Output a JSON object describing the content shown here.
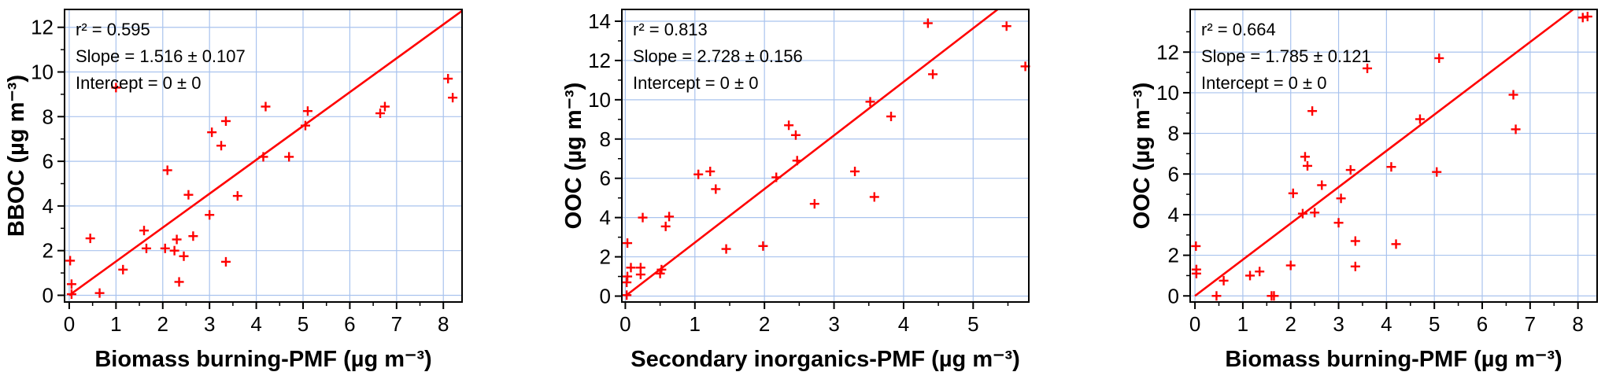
{
  "chart_data": [
    {
      "type": "scatter",
      "xlabel": "Biomass burning-PMF (µg m⁻³)",
      "ylabel": "BBOC (µg m⁻³)",
      "xlim": [
        -0.1,
        8.4
      ],
      "ylim": [
        -0.3,
        12.8
      ],
      "xticks": [
        0,
        1,
        2,
        3,
        4,
        5,
        6,
        7,
        8
      ],
      "yticks": [
        0,
        2,
        4,
        6,
        8,
        10,
        12
      ],
      "grid": true,
      "annotations": [
        "r² = 0.595",
        "Slope = 1.516 ± 0.107",
        "Intercept = 0 ± 0"
      ],
      "fit": {
        "slope": 1.516,
        "intercept": 0
      },
      "marker_color": "#ff0000",
      "points": [
        {
          "x": 0.02,
          "y": 1.55
        },
        {
          "x": 0.05,
          "y": 0.5
        },
        {
          "x": 0.05,
          "y": 0.05
        },
        {
          "x": 0.45,
          "y": 2.55
        },
        {
          "x": 0.65,
          "y": 0.1
        },
        {
          "x": 1.15,
          "y": 1.15
        },
        {
          "x": 1.6,
          "y": 2.9
        },
        {
          "x": 1.65,
          "y": 2.1
        },
        {
          "x": 2.05,
          "y": 2.1
        },
        {
          "x": 2.1,
          "y": 5.6
        },
        {
          "x": 2.25,
          "y": 2.0
        },
        {
          "x": 2.3,
          "y": 2.5
        },
        {
          "x": 2.35,
          "y": 0.6
        },
        {
          "x": 2.45,
          "y": 1.75
        },
        {
          "x": 2.55,
          "y": 4.5
        },
        {
          "x": 2.65,
          "y": 2.65
        },
        {
          "x": 3.0,
          "y": 3.6
        },
        {
          "x": 3.05,
          "y": 7.3
        },
        {
          "x": 3.25,
          "y": 6.7
        },
        {
          "x": 3.35,
          "y": 7.8
        },
        {
          "x": 3.35,
          "y": 1.5
        },
        {
          "x": 3.6,
          "y": 4.45
        },
        {
          "x": 4.15,
          "y": 6.2
        },
        {
          "x": 4.2,
          "y": 8.45
        },
        {
          "x": 4.7,
          "y": 6.2
        },
        {
          "x": 5.05,
          "y": 7.6
        },
        {
          "x": 5.1,
          "y": 8.25
        },
        {
          "x": 6.65,
          "y": 8.15
        },
        {
          "x": 6.75,
          "y": 8.45
        },
        {
          "x": 8.1,
          "y": 9.7
        },
        {
          "x": 8.2,
          "y": 8.85
        },
        {
          "x": 1.0,
          "y": 9.3
        }
      ]
    },
    {
      "type": "scatter",
      "xlabel": "Secondary inorganics-PMF (µg m⁻³)",
      "ylabel": "OOC (µg m⁻³)",
      "xlim": [
        -0.05,
        5.8
      ],
      "ylim": [
        -0.3,
        14.6
      ],
      "xticks": [
        0,
        1,
        2,
        3,
        4,
        5
      ],
      "yticks": [
        0,
        2,
        4,
        6,
        8,
        10,
        12,
        14
      ],
      "grid": true,
      "annotations": [
        "r² = 0.813",
        "Slope = 2.728 ± 0.156",
        "Intercept = 0 ± 0"
      ],
      "fit": {
        "slope": 2.728,
        "intercept": 0
      },
      "marker_color": "#ff0000",
      "points": [
        {
          "x": 0.02,
          "y": 0.05
        },
        {
          "x": 0.02,
          "y": 0.7
        },
        {
          "x": 0.03,
          "y": 1.0
        },
        {
          "x": 0.03,
          "y": 2.7
        },
        {
          "x": 0.08,
          "y": 1.45
        },
        {
          "x": 0.22,
          "y": 1.1
        },
        {
          "x": 0.22,
          "y": 1.45
        },
        {
          "x": 0.25,
          "y": 4.0
        },
        {
          "x": 0.5,
          "y": 1.15
        },
        {
          "x": 0.52,
          "y": 1.35
        },
        {
          "x": 0.58,
          "y": 3.55
        },
        {
          "x": 0.63,
          "y": 4.05
        },
        {
          "x": 1.05,
          "y": 6.2
        },
        {
          "x": 1.22,
          "y": 6.35
        },
        {
          "x": 1.3,
          "y": 5.45
        },
        {
          "x": 1.45,
          "y": 2.4
        },
        {
          "x": 1.98,
          "y": 2.55
        },
        {
          "x": 2.17,
          "y": 6.05
        },
        {
          "x": 2.35,
          "y": 8.7
        },
        {
          "x": 2.45,
          "y": 8.2
        },
        {
          "x": 2.47,
          "y": 6.9
        },
        {
          "x": 2.72,
          "y": 4.7
        },
        {
          "x": 3.3,
          "y": 6.35
        },
        {
          "x": 3.52,
          "y": 9.9
        },
        {
          "x": 3.58,
          "y": 5.05
        },
        {
          "x": 3.82,
          "y": 9.15
        },
        {
          "x": 4.35,
          "y": 13.9
        },
        {
          "x": 4.42,
          "y": 11.3
        },
        {
          "x": 5.48,
          "y": 13.75
        },
        {
          "x": 5.75,
          "y": 11.7
        }
      ]
    },
    {
      "type": "scatter",
      "xlabel": "Biomass burning-PMF (µg m⁻³)",
      "ylabel": "OOC (µg m⁻³)",
      "xlim": [
        -0.1,
        8.4
      ],
      "ylim": [
        -0.3,
        14.1
      ],
      "xticks": [
        0,
        1,
        2,
        3,
        4,
        5,
        6,
        7,
        8
      ],
      "yticks": [
        0,
        2,
        4,
        6,
        8,
        10,
        12
      ],
      "grid": true,
      "annotations": [
        "r² = 0.664",
        "Slope = 1.785 ± 0.121",
        "Intercept = 0 ± 0"
      ],
      "fit": {
        "slope": 1.785,
        "intercept": 0
      },
      "marker_color": "#ff0000",
      "points": [
        {
          "x": 0.02,
          "y": 2.45
        },
        {
          "x": 0.03,
          "y": 1.3
        },
        {
          "x": 0.03,
          "y": 1.1
        },
        {
          "x": 0.45,
          "y": 0.0
        },
        {
          "x": 0.6,
          "y": 0.75
        },
        {
          "x": 1.15,
          "y": 1.0
        },
        {
          "x": 1.35,
          "y": 1.2
        },
        {
          "x": 1.6,
          "y": 0.0
        },
        {
          "x": 1.65,
          "y": 0.0
        },
        {
          "x": 2.0,
          "y": 1.5
        },
        {
          "x": 2.05,
          "y": 5.05
        },
        {
          "x": 2.25,
          "y": 4.05
        },
        {
          "x": 2.3,
          "y": 6.85
        },
        {
          "x": 2.35,
          "y": 6.4
        },
        {
          "x": 2.45,
          "y": 9.1
        },
        {
          "x": 2.5,
          "y": 4.1
        },
        {
          "x": 2.65,
          "y": 5.45
        },
        {
          "x": 3.0,
          "y": 3.6
        },
        {
          "x": 3.05,
          "y": 4.8
        },
        {
          "x": 3.25,
          "y": 6.2
        },
        {
          "x": 3.35,
          "y": 2.7
        },
        {
          "x": 3.35,
          "y": 1.45
        },
        {
          "x": 3.6,
          "y": 11.2
        },
        {
          "x": 4.1,
          "y": 6.35
        },
        {
          "x": 4.2,
          "y": 2.55
        },
        {
          "x": 4.7,
          "y": 8.7
        },
        {
          "x": 5.05,
          "y": 6.1
        },
        {
          "x": 5.1,
          "y": 11.7
        },
        {
          "x": 6.65,
          "y": 9.9
        },
        {
          "x": 6.7,
          "y": 8.2
        },
        {
          "x": 8.1,
          "y": 13.7
        },
        {
          "x": 8.2,
          "y": 13.75
        }
      ]
    }
  ]
}
